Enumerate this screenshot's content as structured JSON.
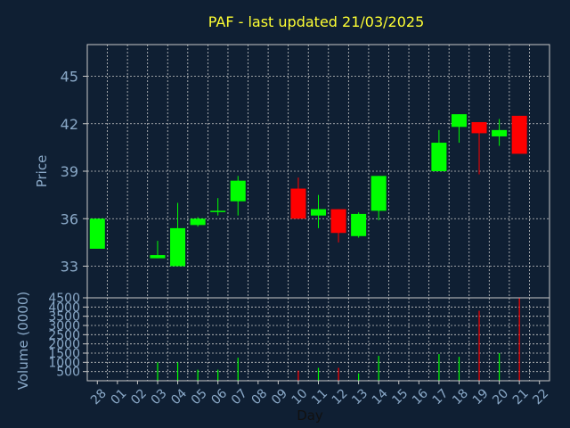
{
  "chart_data": {
    "type": "candlestick",
    "title": "PAF - last updated 21/03/2025",
    "price_panel": {
      "ylabel": "Price",
      "ylim": [
        31.0,
        47.0
      ],
      "yticks": [
        33,
        36,
        39,
        42,
        45
      ]
    },
    "volume_panel": {
      "ylabel": "Volume (0000)",
      "ylim": [
        0,
        4500
      ],
      "yticks": [
        500,
        1000,
        1500,
        2000,
        2500,
        3000,
        3500,
        4000,
        4500
      ]
    },
    "xlabel": "Day",
    "days": [
      "28",
      "01",
      "02",
      "03",
      "04",
      "05",
      "06",
      "07",
      "08",
      "09",
      "10",
      "11",
      "12",
      "13",
      "14",
      "15",
      "16",
      "17",
      "18",
      "19",
      "20",
      "21",
      "22"
    ],
    "candles": [
      {
        "day": "28",
        "open": 34.1,
        "close": 36.0,
        "high": 36.0,
        "low": 34.1
      },
      {
        "day": "03",
        "open": 33.5,
        "close": 33.7,
        "high": 34.6,
        "low": 33.5
      },
      {
        "day": "04",
        "open": 33.0,
        "close": 35.4,
        "high": 37.0,
        "low": 33.0
      },
      {
        "day": "05",
        "open": 35.6,
        "close": 36.0,
        "high": 36.1,
        "low": 35.5
      },
      {
        "day": "06",
        "open": 36.5,
        "close": 36.5,
        "high": 37.3,
        "low": 36.2
      },
      {
        "day": "07",
        "open": 37.1,
        "close": 38.4,
        "high": 38.7,
        "low": 36.2
      },
      {
        "day": "10",
        "open": 37.9,
        "close": 36.0,
        "high": 38.6,
        "low": 36.0
      },
      {
        "day": "11",
        "open": 36.2,
        "close": 36.6,
        "high": 37.5,
        "low": 35.4
      },
      {
        "day": "12",
        "open": 36.6,
        "close": 35.1,
        "high": 36.6,
        "low": 34.5
      },
      {
        "day": "13",
        "open": 34.9,
        "close": 36.3,
        "high": 36.4,
        "low": 34.8
      },
      {
        "day": "14",
        "open": 36.5,
        "close": 38.7,
        "high": 38.7,
        "low": 35.9
      },
      {
        "day": "17",
        "open": 39.0,
        "close": 40.8,
        "high": 41.6,
        "low": 39.0
      },
      {
        "day": "18",
        "open": 41.8,
        "close": 42.6,
        "high": 42.6,
        "low": 40.8
      },
      {
        "day": "19",
        "open": 42.1,
        "close": 41.4,
        "high": 42.1,
        "low": 38.8
      },
      {
        "day": "20",
        "open": 41.2,
        "close": 41.6,
        "high": 42.3,
        "low": 40.6
      },
      {
        "day": "21",
        "open": 42.5,
        "close": 40.1,
        "high": 42.5,
        "low": 40.1
      }
    ],
    "volumes": [
      {
        "day": "28",
        "value": 0
      },
      {
        "day": "03",
        "value": 1000
      },
      {
        "day": "04",
        "value": 1000
      },
      {
        "day": "05",
        "value": 600
      },
      {
        "day": "06",
        "value": 600
      },
      {
        "day": "07",
        "value": 1250
      },
      {
        "day": "10",
        "value": 550
      },
      {
        "day": "11",
        "value": 700
      },
      {
        "day": "12",
        "value": 700
      },
      {
        "day": "13",
        "value": 400
      },
      {
        "day": "14",
        "value": 1350
      },
      {
        "day": "17",
        "value": 1450
      },
      {
        "day": "18",
        "value": 1300
      },
      {
        "day": "19",
        "value": 3800
      },
      {
        "day": "20",
        "value": 1500
      },
      {
        "day": "21",
        "value": 4500
      }
    ],
    "colors": {
      "background": "#0f1f33",
      "up": "#00ff00",
      "down": "#ff0000",
      "grid": "#c8c8c8",
      "axis_text": "#8aa9c8",
      "title": "#ffff33"
    },
    "grid": true
  }
}
